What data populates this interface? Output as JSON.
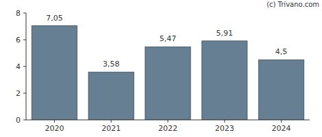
{
  "chart_data": {
    "type": "bar",
    "annotation": "(c) Trivano.com",
    "categories": [
      "2020",
      "2021",
      "2022",
      "2023",
      "2024"
    ],
    "values": [
      7.05,
      3.58,
      5.47,
      5.91,
      4.5
    ],
    "value_labels": [
      "7,05",
      "3,58",
      "5,47",
      "5,91",
      "4,5"
    ],
    "color": "#667f92",
    "ylim": [
      0,
      8
    ],
    "yticks": [
      0,
      2,
      4,
      6,
      8
    ],
    "grid": false,
    "data_labels": true
  }
}
